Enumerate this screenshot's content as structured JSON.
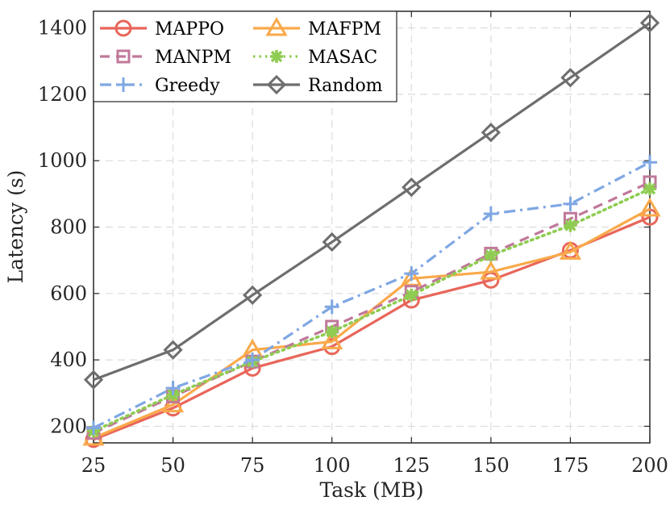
{
  "chart_data": {
    "type": "line",
    "title": "",
    "xlabel": "Task (MB)",
    "ylabel": "Latency (s)",
    "x": [
      25,
      50,
      75,
      100,
      125,
      150,
      175,
      200
    ],
    "x_tick_labels": [
      "25",
      "50",
      "75",
      "100",
      "125",
      "150",
      "175",
      "200"
    ],
    "y_tick_labels": [
      "200",
      "400",
      "600",
      "800",
      "1000",
      "1200",
      "1400"
    ],
    "xlim": [
      25,
      200
    ],
    "ylim": [
      150,
      1450
    ],
    "grid": true,
    "legend_position": "top-left",
    "series": [
      {
        "name": "MAPPO",
        "color": "#e8665a",
        "marker": "circle",
        "dash": "solid",
        "values": [
          160,
          255,
          375,
          440,
          580,
          640,
          730,
          830
        ]
      },
      {
        "name": "MAFPM",
        "color": "#f9a94a",
        "marker": "triangle",
        "dash": "solid",
        "values": [
          165,
          265,
          430,
          455,
          645,
          665,
          725,
          855
        ]
      },
      {
        "name": "MANPM",
        "color": "#c0789a",
        "marker": "square",
        "dash": "dashed",
        "values": [
          180,
          290,
          395,
          500,
          605,
          720,
          825,
          935
        ]
      },
      {
        "name": "MASAC",
        "color": "#8fcc52",
        "marker": "star",
        "dash": "dotted",
        "values": [
          185,
          295,
          395,
          485,
          595,
          715,
          805,
          915
        ]
      },
      {
        "name": "Greedy",
        "color": "#7fa7e3",
        "marker": "plus",
        "dash": "dashdot",
        "values": [
          195,
          315,
          400,
          560,
          660,
          840,
          870,
          995
        ]
      },
      {
        "name": "Random",
        "color": "#6e6e6e",
        "marker": "diamond",
        "dash": "solid",
        "values": [
          340,
          430,
          595,
          755,
          920,
          1085,
          1250,
          1415
        ]
      }
    ]
  }
}
